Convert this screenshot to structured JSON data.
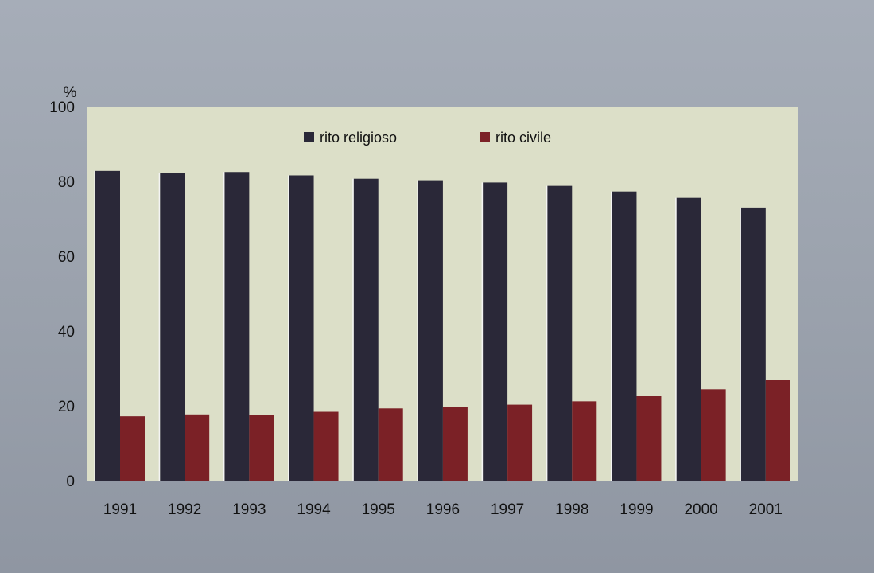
{
  "chart_data": {
    "type": "bar",
    "categories": [
      "1991",
      "1992",
      "1993",
      "1994",
      "1995",
      "1996",
      "1997",
      "1998",
      "1999",
      "2000",
      "2001"
    ],
    "series": [
      {
        "name": "rito religioso",
        "color": "#2a2838",
        "values": [
          82.8,
          82.3,
          82.5,
          81.6,
          80.7,
          80.3,
          79.7,
          78.8,
          77.3,
          75.6,
          73.0
        ]
      },
      {
        "name": "rito civile",
        "color": "#7b2126",
        "values": [
          17.2,
          17.7,
          17.5,
          18.4,
          19.3,
          19.7,
          20.3,
          21.2,
          22.7,
          24.4,
          27.0
        ]
      }
    ],
    "ylabel": "%",
    "ylim": [
      0,
      100
    ],
    "yticks": [
      "0",
      "20",
      "40",
      "60",
      "80",
      "100"
    ],
    "legend_position": "top",
    "grid": false
  }
}
